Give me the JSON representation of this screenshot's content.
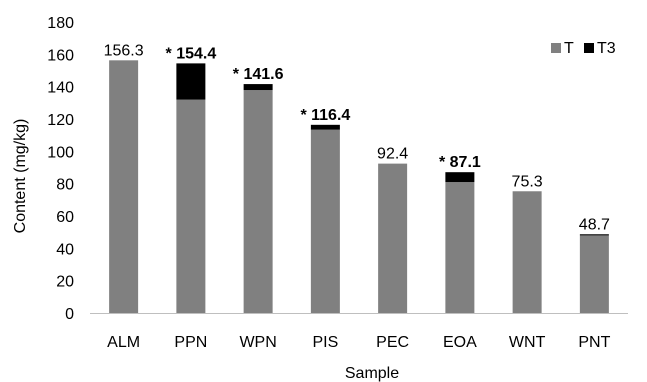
{
  "chart_data": {
    "type": "bar",
    "stacked": true,
    "categories": [
      "ALM",
      "PPN",
      "WPN",
      "PIS",
      "PEC",
      "EOA",
      "WNT",
      "PNT"
    ],
    "series": [
      {
        "name": "T",
        "color": "#808080",
        "values": [
          156.3,
          132.0,
          137.9,
          113.4,
          92.4,
          81.0,
          75.3,
          48.0
        ]
      },
      {
        "name": "T3",
        "color": "#000000",
        "values": [
          0,
          22.4,
          3.7,
          3.0,
          0,
          6.1,
          0,
          0.7
        ]
      }
    ],
    "totals": [
      156.3,
      154.4,
      141.6,
      116.4,
      92.4,
      87.1,
      75.3,
      48.7
    ],
    "data_labels": [
      "156.3",
      "* 154.4",
      "* 141.6",
      "* 116.4",
      "92.4",
      "* 87.1",
      "75.3",
      "48.7"
    ],
    "label_bold": [
      false,
      true,
      true,
      true,
      false,
      true,
      false,
      false
    ],
    "xlabel": "Sample",
    "ylabel": "Content (mg/kg)",
    "ylim": [
      0,
      180
    ],
    "yticks": [
      "0",
      "20",
      "40",
      "60",
      "80",
      "100",
      "120",
      "140",
      "160",
      "180"
    ],
    "grid": false,
    "legend_position": "top-right"
  }
}
